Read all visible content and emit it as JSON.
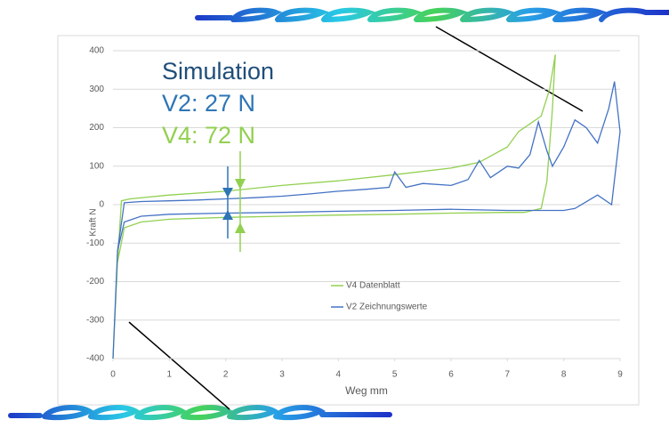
{
  "chart_data": {
    "type": "line",
    "xlabel": "Weg mm",
    "ylabel": "Kraft N",
    "annotations": [
      {
        "text": "Simulation",
        "color": "#1f4e79"
      },
      {
        "text": "V2: 27 N",
        "color": "#2e75b6"
      },
      {
        "text": "V4: 72 N",
        "color": "#92d050"
      }
    ],
    "xlim": [
      0,
      9
    ],
    "xticks": [
      0,
      1,
      2,
      3,
      4,
      5,
      6,
      7,
      8,
      9
    ],
    "ylim": [
      -400,
      400
    ],
    "yticks": [
      -400,
      -300,
      -200,
      -100,
      0,
      100,
      200,
      300,
      400
    ],
    "grid": true,
    "series": [
      {
        "name": "V4 Datenblatt",
        "color": "#92d050",
        "x": [
          0,
          0.08,
          0.15,
          0.3,
          1,
          2,
          3,
          4,
          5,
          6,
          6.5,
          7,
          7.2,
          7.4,
          7.6,
          7.75,
          7.85,
          7.8,
          7.7,
          7.6,
          7.3,
          7,
          6,
          5,
          4,
          3,
          2,
          1,
          0.5,
          0.2,
          0.08,
          0
        ],
        "values": [
          -400,
          -150,
          10,
          15,
          25,
          35,
          50,
          62,
          78,
          95,
          110,
          150,
          190,
          210,
          230,
          300,
          390,
          250,
          60,
          -10,
          -20,
          -20,
          -22,
          -25,
          -27,
          -30,
          -33,
          -38,
          -45,
          -60,
          -150,
          -400
        ]
      },
      {
        "name": "V2 Zeichnungswerte",
        "color": "#4472c4",
        "x": [
          0,
          0.08,
          0.2,
          0.5,
          1,
          1.5,
          2,
          2.5,
          3,
          3.5,
          4,
          4.5,
          4.9,
          5,
          5.2,
          5.5,
          6,
          6.3,
          6.5,
          6.7,
          7,
          7.2,
          7.4,
          7.55,
          7.7,
          7.8,
          8,
          8.2,
          8.4,
          8.6,
          8.8,
          8.9,
          9,
          8.85,
          8.6,
          8.2,
          8,
          7.6,
          7,
          6,
          5,
          4,
          3,
          2,
          1,
          0.5,
          0.2,
          0.08,
          0
        ],
        "values": [
          -400,
          -120,
          5,
          8,
          10,
          12,
          15,
          18,
          22,
          28,
          35,
          40,
          45,
          85,
          45,
          55,
          50,
          65,
          115,
          70,
          100,
          95,
          130,
          215,
          140,
          100,
          150,
          220,
          200,
          160,
          250,
          320,
          190,
          0,
          25,
          -10,
          -15,
          -15,
          -15,
          -12,
          -15,
          -17,
          -20,
          -22,
          -25,
          -30,
          -45,
          -120,
          -400
        ]
      }
    ]
  }
}
